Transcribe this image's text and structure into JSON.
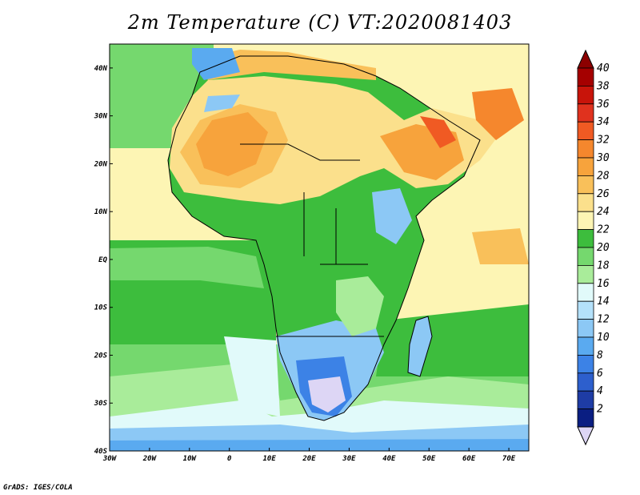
{
  "title": "2m Temperature (C) VT:2020081403",
  "credit": "GrADS: IGES/COLA",
  "map": {
    "lon_range": [
      -30,
      75
    ],
    "lat_range": [
      -40,
      45
    ],
    "x_ticks": [
      "30W",
      "20W",
      "10W",
      "0",
      "10E",
      "20E",
      "30E",
      "40E",
      "50E",
      "60E",
      "70E"
    ],
    "y_ticks": [
      "40N",
      "30N",
      "20N",
      "10N",
      "EQ",
      "10S",
      "20S",
      "30S",
      "40S"
    ]
  },
  "colorbar": {
    "levels": [
      "40",
      "38",
      "36",
      "34",
      "32",
      "30",
      "28",
      "26",
      "24",
      "22",
      "20",
      "18",
      "16",
      "14",
      "12",
      "10",
      "8",
      "6",
      "4",
      "2"
    ],
    "colors": [
      "#a50000",
      "#c8140a",
      "#e0321e",
      "#f05a23",
      "#f5872d",
      "#f7a33c",
      "#f9c05a",
      "#fbe08c",
      "#fdf5b4",
      "#3dbd3d",
      "#75d86e",
      "#a9ec9a",
      "#e1fafa",
      "#b4e1fa",
      "#8cc8f5",
      "#5aaaf0",
      "#3c82e6",
      "#2d5fcd",
      "#1e3ca5",
      "#0a1e82"
    ],
    "top_arrow_color": "#8c0000",
    "bottom_arrow_color": "#ddd6f5"
  }
}
